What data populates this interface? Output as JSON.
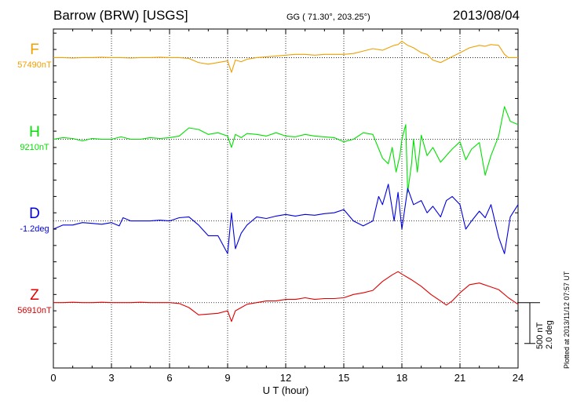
{
  "header": {
    "title": "Barrow (BRW)  [USGS]",
    "coords": "GG ( 71.30°, 203.25°)",
    "date": "2013/08/04",
    "plotted": "Plotted at 2013/11/12 07:57 UT"
  },
  "scale": {
    "nt": "500 nT",
    "deg": "2.0 deg"
  },
  "chart_data": {
    "type": "line",
    "xlabel": "U T (hour)",
    "xlim": [
      0,
      24
    ],
    "xticks": [
      0,
      3,
      6,
      9,
      12,
      15,
      18,
      21,
      24
    ],
    "ylim": [
      -2300,
      1850
    ],
    "grid": true,
    "series": [
      {
        "name": "F",
        "baseline_label": "57490nT",
        "color": "#f0a000",
        "offset": 1500,
        "baseline": 1500,
        "x": [
          0,
          0.5,
          1,
          1.5,
          2,
          2.5,
          3,
          3.5,
          4,
          4.5,
          5,
          5.5,
          6,
          6.5,
          7,
          7.5,
          8,
          8.5,
          9,
          9.2,
          9.4,
          9.7,
          10,
          10.5,
          11,
          11.5,
          12,
          12.5,
          13,
          13.5,
          14,
          14.5,
          15,
          15.5,
          16,
          16.5,
          17,
          17.3,
          17.6,
          17.8,
          18,
          18.3,
          18.6,
          19,
          19.3,
          19.6,
          20,
          20.5,
          21,
          21.5,
          22,
          22.3,
          22.6,
          23,
          23.3,
          23.5,
          24
        ],
        "values": [
          0,
          0,
          -5,
          0,
          0,
          5,
          0,
          0,
          -5,
          0,
          0,
          5,
          0,
          0,
          -10,
          -60,
          -80,
          -60,
          -40,
          -180,
          -30,
          -50,
          -20,
          0,
          10,
          20,
          30,
          40,
          40,
          30,
          40,
          40,
          40,
          50,
          80,
          110,
          90,
          120,
          150,
          160,
          200,
          150,
          120,
          60,
          40,
          -30,
          -60,
          0,
          60,
          120,
          150,
          140,
          160,
          150,
          40,
          0,
          0
        ]
      },
      {
        "name": "H",
        "baseline_label": "9210nT",
        "color": "#00e000",
        "offset": 500,
        "baseline": 500,
        "x": [
          0,
          0.5,
          1,
          1.5,
          2,
          2.5,
          3,
          3.5,
          4,
          4.5,
          5,
          5.5,
          6,
          6.5,
          7,
          7.5,
          8,
          8.5,
          9,
          9.2,
          9.4,
          9.7,
          10,
          10.5,
          11,
          11.5,
          12,
          12.5,
          13,
          13.5,
          14,
          14.5,
          15,
          15.5,
          16,
          16.5,
          17,
          17.3,
          17.5,
          17.7,
          17.9,
          18,
          18.2,
          18.3,
          18.5,
          18.6,
          18.8,
          19,
          19.3,
          19.6,
          20,
          20.3,
          20.6,
          21,
          21.3,
          21.6,
          22,
          22.3,
          22.6,
          23,
          23.3,
          23.6,
          24
        ],
        "values": [
          0,
          20,
          10,
          -20,
          10,
          0,
          0,
          30,
          0,
          0,
          20,
          10,
          20,
          40,
          140,
          120,
          60,
          80,
          40,
          -100,
          60,
          20,
          70,
          60,
          40,
          80,
          40,
          30,
          60,
          40,
          30,
          20,
          -30,
          0,
          80,
          60,
          -230,
          -300,
          -100,
          -400,
          -200,
          0,
          180,
          -650,
          -300,
          0,
          -400,
          50,
          -200,
          -100,
          -280,
          -200,
          -120,
          -30,
          -250,
          -120,
          -40,
          -440,
          -200,
          40,
          400,
          220,
          180
        ]
      },
      {
        "name": "D",
        "baseline_label": "-1.2deg",
        "color": "#0000e0",
        "offset": -500,
        "baseline": -500,
        "x": [
          0,
          0.5,
          1,
          1.5,
          2,
          2.5,
          3,
          3.4,
          3.6,
          4,
          4.5,
          5,
          5.5,
          6,
          6.5,
          7,
          7.5,
          8,
          8.5,
          9,
          9.2,
          9.4,
          9.7,
          10,
          10.5,
          11,
          11.5,
          12,
          12.5,
          13,
          13.5,
          14,
          14.5,
          15,
          15.5,
          16,
          16.5,
          16.8,
          17,
          17.3,
          17.6,
          17.8,
          18,
          18.3,
          18.6,
          19,
          19.3,
          19.6,
          20,
          20.3,
          20.6,
          21,
          21.3,
          21.6,
          22,
          22.3,
          22.6,
          23,
          23.3,
          23.6,
          24
        ],
        "values": [
          -100,
          -50,
          -50,
          -20,
          -30,
          -40,
          -20,
          -60,
          40,
          0,
          0,
          0,
          10,
          0,
          40,
          50,
          -50,
          -180,
          -180,
          -400,
          100,
          -340,
          -150,
          -50,
          50,
          30,
          60,
          80,
          60,
          80,
          70,
          90,
          100,
          140,
          0,
          -60,
          0,
          300,
          200,
          450,
          0,
          350,
          -100,
          400,
          200,
          250,
          100,
          180,
          50,
          250,
          300,
          200,
          -100,
          0,
          120,
          40,
          200,
          -200,
          -400,
          50,
          200
        ]
      },
      {
        "name": "Z",
        "baseline_label": "56910nT",
        "color": "#e00000",
        "offset": -1500,
        "baseline": -1500,
        "x": [
          0,
          0.5,
          1,
          1.5,
          2,
          2.5,
          3,
          3.5,
          4,
          4.5,
          5,
          5.5,
          6,
          6.5,
          7,
          7.5,
          8,
          8.5,
          9,
          9.2,
          9.4,
          9.7,
          10,
          10.5,
          11,
          11.5,
          12,
          12.5,
          13,
          13.5,
          14,
          14.5,
          15,
          15.5,
          16,
          16.5,
          17,
          17.5,
          17.8,
          18,
          18.5,
          19,
          19.5,
          20,
          20.3,
          20.6,
          21,
          21.5,
          22,
          22.5,
          23,
          23.5,
          24
        ],
        "values": [
          0,
          0,
          5,
          0,
          0,
          5,
          0,
          0,
          0,
          5,
          0,
          0,
          0,
          -10,
          -60,
          -150,
          -140,
          -130,
          -100,
          -230,
          -100,
          -60,
          -20,
          0,
          20,
          20,
          40,
          40,
          60,
          40,
          50,
          50,
          60,
          100,
          120,
          150,
          260,
          340,
          380,
          350,
          280,
          200,
          100,
          20,
          -30,
          20,
          120,
          220,
          240,
          200,
          160,
          60,
          -20
        ]
      }
    ]
  }
}
